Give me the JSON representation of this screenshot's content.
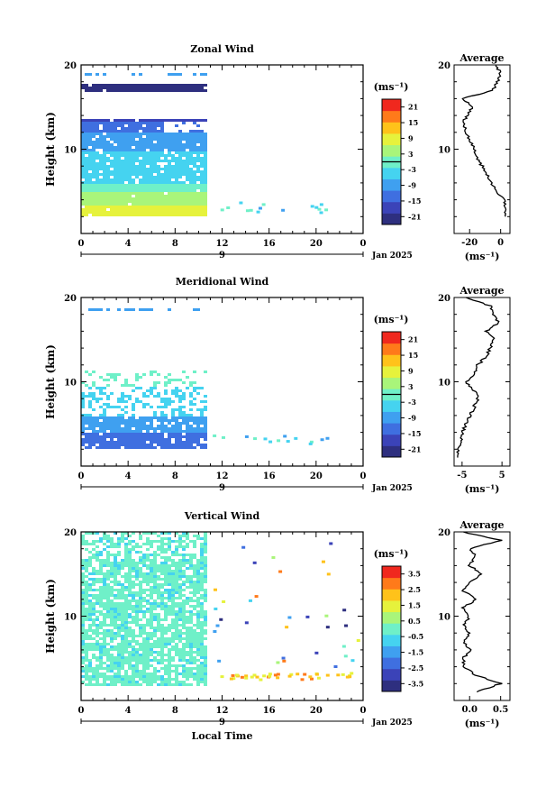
{
  "figure": {
    "time_axis_label": "Local Time"
  },
  "colormap": [
    "#2e2f7f",
    "#3b43b8",
    "#3f6fe0",
    "#3fa0f0",
    "#45d3f0",
    "#6ff0c8",
    "#a9f57a",
    "#e6f23c",
    "#ffc21a",
    "#ff7a1a",
    "#f0281e"
  ],
  "chart_data": [
    {
      "id": "zonal",
      "type": "heatmap",
      "title": "Zonal Wind",
      "ylabel": "Height (km)",
      "ylim": [
        0,
        20
      ],
      "y_ticks": [
        "20",
        "10"
      ],
      "xlim": [
        0,
        24
      ],
      "x_ticks": [
        "0",
        "4",
        "8",
        "12",
        "16",
        "20",
        "0"
      ],
      "date_day": "9",
      "date_label": "Jan 2025",
      "colorbar": {
        "unit": "(ms⁻¹)",
        "min": -24,
        "max": 24,
        "ticks": [
          "21",
          "15",
          "9",
          "3",
          "-3",
          "-9",
          "-15",
          "-21"
        ]
      },
      "mean_x_range": [
        -30,
        6
      ],
      "profile": {
        "title": "Average",
        "ylim": [
          0,
          20
        ],
        "y_ticks": [
          "20",
          "10"
        ],
        "x_ticks": [
          "-20",
          "0"
        ],
        "xlabel": "(ms⁻¹)",
        "xlim": [
          -30,
          6
        ],
        "points": [
          [
            3,
            2
          ],
          [
            3,
            3
          ],
          [
            2,
            4
          ],
          [
            -2,
            5
          ],
          [
            -6,
            6
          ],
          [
            -9,
            7
          ],
          [
            -12,
            8
          ],
          [
            -15,
            9
          ],
          [
            -17,
            10
          ],
          [
            -20,
            11
          ],
          [
            -22,
            12
          ],
          [
            -24,
            13
          ],
          [
            -22,
            14
          ],
          [
            -18,
            15
          ],
          [
            -24,
            16
          ],
          [
            -5,
            17
          ],
          [
            -2,
            18
          ],
          [
            0,
            19
          ],
          [
            -3,
            20
          ]
        ]
      }
    },
    {
      "id": "meridional",
      "type": "heatmap",
      "title": "Meridional Wind",
      "ylabel": "Height (km)",
      "ylim": [
        0,
        20
      ],
      "y_ticks": [
        "20",
        "10"
      ],
      "xlim": [
        0,
        24
      ],
      "x_ticks": [
        "0",
        "4",
        "8",
        "12",
        "16",
        "20",
        "0"
      ],
      "date_day": "9",
      "date_label": "Jan 2025",
      "colorbar": {
        "unit": "(ms⁻¹)",
        "min": -24,
        "max": 24,
        "ticks": [
          "21",
          "15",
          "9",
          "3",
          "-3",
          "-9",
          "-15",
          "-21"
        ]
      },
      "mean_x_range": [
        -8,
        4
      ],
      "profile": {
        "title": "Average",
        "ylim": [
          0,
          20
        ],
        "y_ticks": [
          "20",
          "10"
        ],
        "x_ticks": [
          "-5",
          "5"
        ],
        "xlabel": "(ms⁻¹)",
        "xlim": [
          -7,
          7
        ],
        "points": [
          [
            -6,
            1
          ],
          [
            -6,
            2
          ],
          [
            -5,
            3
          ],
          [
            -5,
            4
          ],
          [
            -4,
            5
          ],
          [
            -3,
            6
          ],
          [
            -2,
            7
          ],
          [
            -1,
            8
          ],
          [
            -2,
            9
          ],
          [
            -4,
            10
          ],
          [
            -2,
            11
          ],
          [
            -1,
            12
          ],
          [
            1,
            13
          ],
          [
            2,
            14
          ],
          [
            3,
            15
          ],
          [
            1,
            16
          ],
          [
            4,
            17
          ],
          [
            3,
            18
          ],
          [
            2,
            19
          ],
          [
            -4,
            20
          ]
        ]
      }
    },
    {
      "id": "vertical",
      "type": "heatmap",
      "title": "Vertical Wind",
      "ylabel": "Height (km)",
      "ylim": [
        0,
        20
      ],
      "y_ticks": [
        "20",
        "10"
      ],
      "xlim": [
        0,
        24
      ],
      "x_ticks": [
        "0",
        "4",
        "8",
        "12",
        "16",
        "20",
        "0"
      ],
      "date_day": "9",
      "date_label": "Jan 2025",
      "xlabel": "Local Time",
      "colorbar": {
        "unit": "(ms⁻¹)",
        "min": -4,
        "max": 4,
        "ticks": [
          "3.5",
          "2.5",
          "1.5",
          "0.5",
          "-0.5",
          "-1.5",
          "-2.5",
          "-3.5"
        ]
      },
      "mean_x_range": [
        -0.6,
        0.6
      ],
      "profile": {
        "title": "Average",
        "ylim": [
          0,
          20
        ],
        "y_ticks": [
          "20",
          "10"
        ],
        "x_ticks": [
          "0.0",
          "0.5"
        ],
        "xlabel": "(ms⁻¹)",
        "xlim": [
          -0.25,
          0.65
        ],
        "points": [
          [
            0.1,
            1
          ],
          [
            0.5,
            2
          ],
          [
            0.1,
            3
          ],
          [
            -0.1,
            4
          ],
          [
            -0.1,
            5
          ],
          [
            0.0,
            6
          ],
          [
            -0.1,
            7
          ],
          [
            0.0,
            8
          ],
          [
            -0.1,
            9
          ],
          [
            0.0,
            10
          ],
          [
            -0.1,
            11
          ],
          [
            0.1,
            12
          ],
          [
            -0.1,
            13
          ],
          [
            0.0,
            14
          ],
          [
            0.2,
            15
          ],
          [
            0.0,
            16
          ],
          [
            0.1,
            17
          ],
          [
            0.0,
            18
          ],
          [
            0.5,
            19
          ],
          [
            -0.1,
            20
          ]
        ]
      }
    }
  ]
}
